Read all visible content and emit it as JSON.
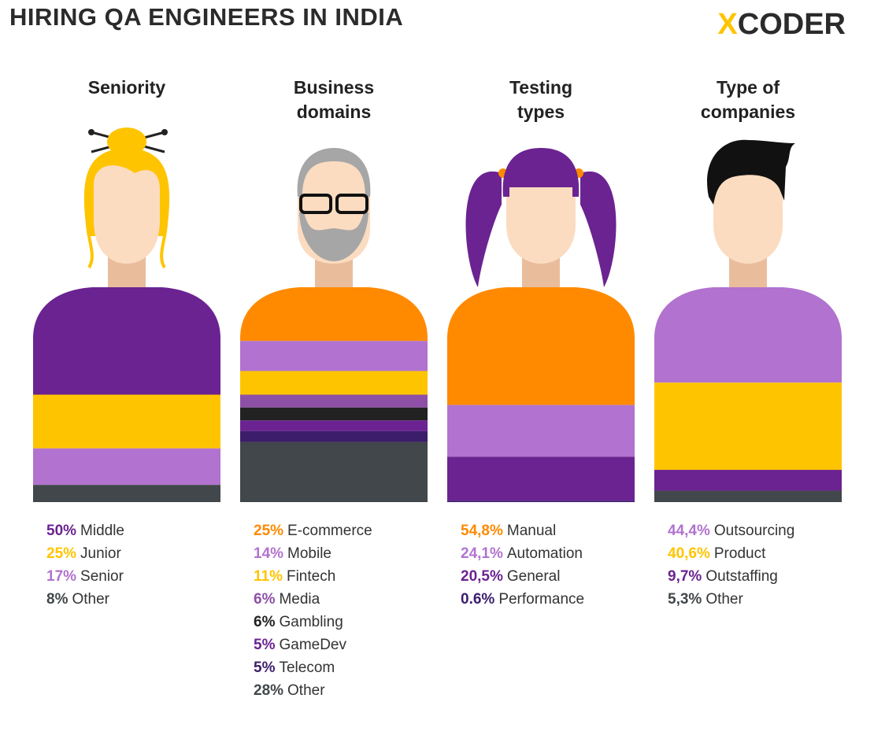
{
  "title": "HIRING QA ENGINEERS IN INDIA",
  "logo_mark": "X",
  "logo_text": "CODER",
  "chart_data": [
    {
      "type": "stripes",
      "title": "Seniority",
      "categories": [
        "Middle",
        "Junior",
        "Senior",
        "Other"
      ],
      "values": [
        50,
        25,
        17,
        8
      ],
      "value_labels": [
        "50%",
        "25%",
        "17%",
        "8%"
      ],
      "colors": [
        "#6b2391",
        "#ffc400",
        "#b173cf",
        "#41474a"
      ]
    },
    {
      "type": "stripes",
      "title": "Business domains",
      "categories": [
        "E-commerce",
        "Mobile",
        "Fintech",
        "Media",
        "Gambling",
        "GameDev",
        "Telecom",
        "Other"
      ],
      "values": [
        25,
        14,
        11,
        6,
        6,
        5,
        5,
        28
      ],
      "value_labels": [
        "25%",
        "14%",
        "11%",
        "6%",
        "6%",
        "5%",
        "5%",
        "28%"
      ],
      "colors": [
        "#ff8a00",
        "#b173cf",
        "#ffc400",
        "#8e50a6",
        "#222222",
        "#6b2391",
        "#3b1d6b",
        "#41474a"
      ]
    },
    {
      "type": "stripes",
      "title": "Testing types",
      "categories": [
        "Manual",
        "Automation",
        "General",
        "Performance"
      ],
      "values": [
        54.8,
        24.1,
        20.5,
        0.6
      ],
      "value_labels": [
        "54,8%",
        "24,1%",
        "20,5%",
        "0.6%"
      ],
      "colors": [
        "#ff8a00",
        "#b173cf",
        "#6b2391",
        "#3b1d6b"
      ]
    },
    {
      "type": "stripes",
      "title": "Type of companies",
      "categories": [
        "Outsourcing",
        "Product",
        "Outstaffing",
        "Other"
      ],
      "values": [
        44.4,
        40.6,
        9.7,
        5.3
      ],
      "value_labels": [
        "44,4%",
        "40,6%",
        "9,7%",
        "5,3%"
      ],
      "colors": [
        "#b173cf",
        "#ffc400",
        "#6b2391",
        "#41474a"
      ]
    }
  ]
}
